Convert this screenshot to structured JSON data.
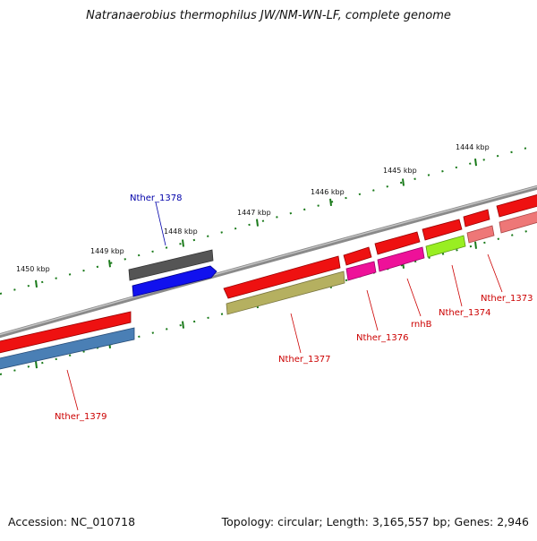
{
  "title": "Natranaerobius thermophilus JW/NM-WN-LF, complete genome",
  "footer": {
    "accession": "Accession: NC_010718",
    "summary": "Topology: circular; Length: 3,165,557 bp; Genes: 2,946"
  },
  "scale": {
    "ticks": [
      "1450 kbp",
      "1449 kbp",
      "1448 kbp",
      "1447 kbp",
      "1446 kbp",
      "1445 kbp",
      "1444 kbp"
    ]
  },
  "genes": [
    {
      "name": "Nther_1379",
      "label_color": "#cc0000"
    },
    {
      "name": "Nther_1378",
      "label_color": "#0000aa"
    },
    {
      "name": "Nther_1377",
      "label_color": "#cc0000"
    },
    {
      "name": "Nther_1376",
      "label_color": "#cc0000"
    },
    {
      "name": "rnhB",
      "label_color": "#cc0000"
    },
    {
      "name": "Nther_1374",
      "label_color": "#cc0000"
    },
    {
      "name": "Nther_1373",
      "label_color": "#cc0000"
    }
  ],
  "colors": {
    "backbone": "#888888",
    "ticks": "#1a7a1a",
    "gene_red": "#ee1111",
    "gene_blue": "#1111ee",
    "gene_grey": "#555555",
    "cds_olive": "#b5b060",
    "cds_steel": "#4a7fb5",
    "cds_magenta": "#ee1199",
    "cds_lime": "#99ee22",
    "cds_pink": "#ee7777"
  }
}
